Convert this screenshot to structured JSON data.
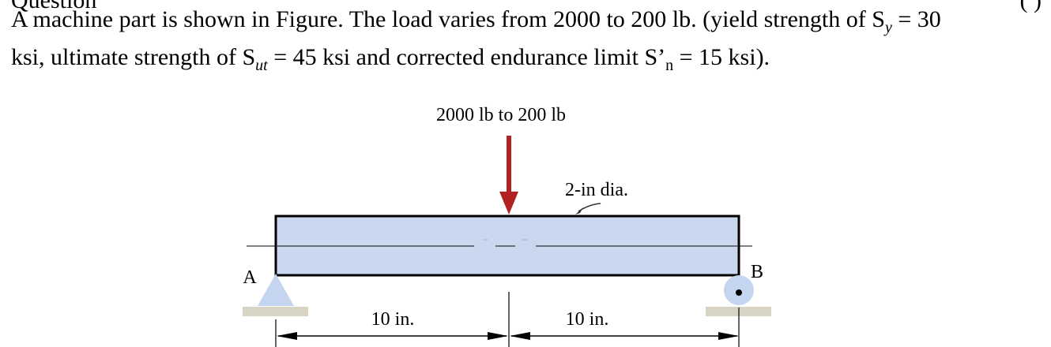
{
  "problem": {
    "top_clipped_left": "Question",
    "top_clipped_right": "(   )",
    "line1_pre": "A machine part is shown in Figure. The load varies from 2000 to 200 lb. (yield strength of S",
    "line1_sub_y": "y",
    "line1_post": " = 30",
    "line2_a": "ksi, ultimate strength of S",
    "line2_sub_ut": "ut",
    "line2_b": " = 45 ksi and corrected endurance limit S’",
    "line2_sub_n": "n",
    "line2_c": " = 15 ksi)."
  },
  "figure": {
    "load_label": "2000 lb to 200 lb",
    "diameter_label": "2-in dia.",
    "support_a_label": "A",
    "support_b_label": "B",
    "dim_left_label": "10 in.",
    "dim_right_label": "10 in.",
    "colors": {
      "beam_fill": "#cad8ef",
      "load_arrow": "#b22222",
      "support_fill": "#c5d5ef",
      "ground": "#d7d4c3"
    }
  }
}
